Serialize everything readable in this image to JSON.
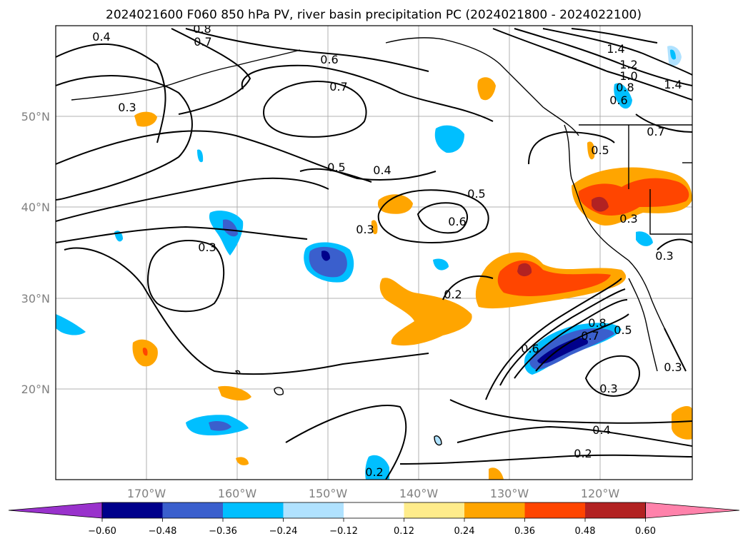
{
  "title": "2024021600 F060 850 hPa PV, river basin precipitation PC (2024021800 - 2024022100)",
  "map": {
    "lon_ticks": [
      "170°W",
      "160°W",
      "150°W",
      "140°W",
      "130°W",
      "120°W"
    ],
    "lat_ticks": [
      "50°N",
      "40°N",
      "30°N",
      "20°N"
    ],
    "gridlines": true
  },
  "contour_labels": [
    "0.8",
    "0.7",
    "0.4",
    "0.3",
    "0.6",
    "0.7",
    "0.5",
    "0.4",
    "0.5",
    "0.6",
    "0.3",
    "0.3",
    "0.2",
    "1.4",
    "1.2",
    "1.0",
    "0.8",
    "0.6",
    "1.4",
    "0.7",
    "0.5",
    "0.3",
    "0.3",
    "0.8",
    "0.7",
    "0.6",
    "0.5",
    "0.3",
    "0.4",
    "0.2",
    "0.3",
    "0.2"
  ],
  "colorbar": {
    "tick_labels": [
      "−0.60",
      "−0.48",
      "−0.36",
      "−0.24",
      "−0.12",
      "0.12",
      "0.24",
      "0.36",
      "0.48",
      "0.60"
    ],
    "colors": [
      "#9932CC",
      "#00008B",
      "#3A5FCD",
      "#00BFFF",
      "#B0E2FF",
      "#FFFFFF",
      "#FFEC8B",
      "#FFA500",
      "#FF4500",
      "#B22222",
      "#FF82AB"
    ]
  }
}
